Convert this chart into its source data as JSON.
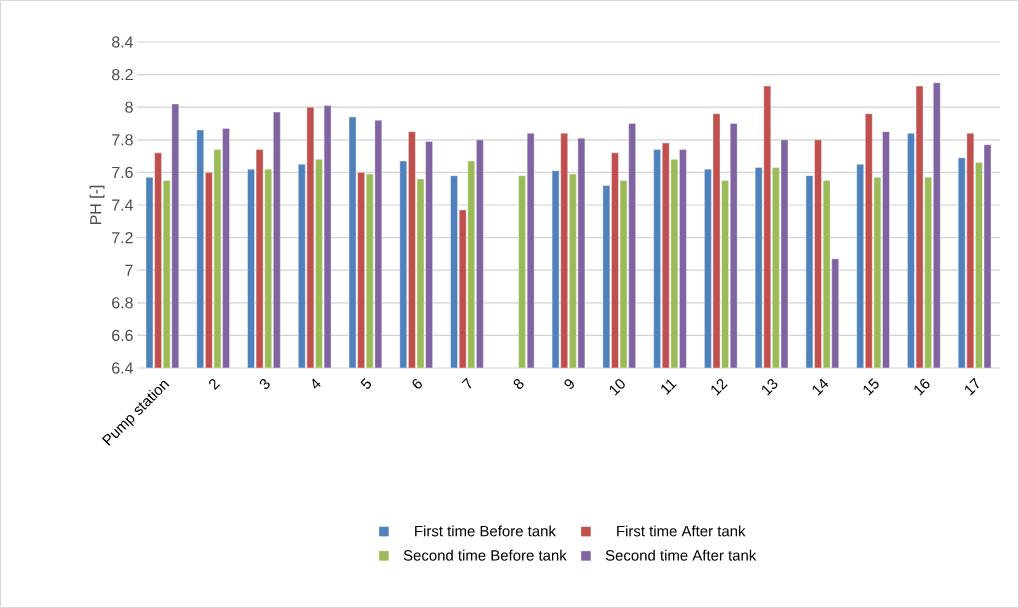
{
  "chart_data": {
    "type": "bar",
    "ylabel": "PH [-]",
    "categories": [
      "Pump station",
      "2",
      "3",
      "4",
      "5",
      "6",
      "7",
      "8",
      "9",
      "10",
      "11",
      "12",
      "13",
      "14",
      "15",
      "16",
      "17"
    ],
    "series": [
      {
        "name": "First time Before tank",
        "color": "#4f81bd",
        "values": [
          7.57,
          7.86,
          7.62,
          7.65,
          7.94,
          7.67,
          7.58,
          null,
          7.61,
          7.52,
          7.74,
          7.62,
          7.63,
          7.58,
          7.65,
          7.84,
          7.69
        ]
      },
      {
        "name": "First time After tank",
        "color": "#c0504d",
        "values": [
          7.72,
          7.6,
          7.74,
          8.0,
          7.6,
          7.85,
          7.37,
          null,
          7.84,
          7.72,
          7.78,
          7.96,
          8.13,
          7.8,
          7.96,
          8.13,
          7.84
        ]
      },
      {
        "name": "Second time Before tank",
        "color": "#9bbb59",
        "values": [
          7.55,
          7.74,
          7.62,
          7.68,
          7.59,
          7.56,
          7.67,
          7.58,
          7.59,
          7.55,
          7.68,
          7.55,
          7.63,
          7.55,
          7.57,
          7.57,
          7.66
        ]
      },
      {
        "name": "Second time After tank",
        "color": "#8064a2",
        "values": [
          8.02,
          7.87,
          7.97,
          8.01,
          7.92,
          7.79,
          7.8,
          7.84,
          7.81,
          7.9,
          7.74,
          7.9,
          7.8,
          7.07,
          7.85,
          8.15,
          7.77
        ]
      }
    ],
    "ylim": [
      6.4,
      8.4
    ],
    "yticks": [
      6.4,
      6.6,
      6.8,
      7,
      7.2,
      7.4,
      7.6,
      7.8,
      8,
      8.2,
      8.4
    ],
    "grid": "y",
    "legend": "bottom"
  }
}
